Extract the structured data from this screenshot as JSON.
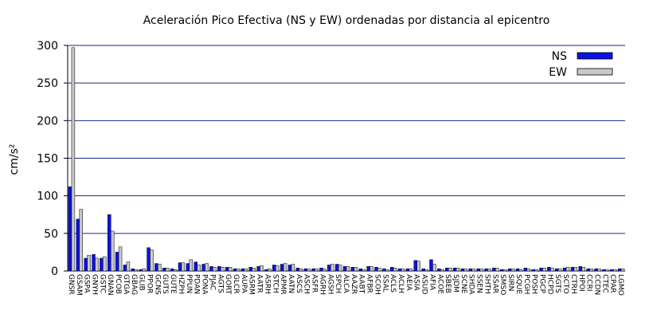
{
  "chart_data": {
    "type": "bar",
    "title": "Aceleración Pico Efectiva (NS y EW) ordenadas por distancia al epicentro",
    "ylabel": "cm/s²",
    "categories": [
      "GNSR",
      "GSAM",
      "GSPA",
      "GNYH",
      "GSTC",
      "GNAN",
      "PCOB",
      "GTGA",
      "GBAG",
      "GLIB",
      "PPOR",
      "GCNS",
      "GUTS",
      "GUTE",
      "HZPH",
      "PPUN",
      "PDAN",
      "PONA",
      "PJAC",
      "AGTS",
      "GORT",
      "GLCR",
      "AUPA",
      "ASRM",
      "AATR",
      "ASRH",
      "STCH",
      "APMR",
      "AATN",
      "ASCS",
      "ASCH",
      "ASFR",
      "AGRH",
      "AGSH",
      "SPCH",
      "ALCA",
      "AAZR",
      "AABT",
      "AFBR",
      "SCOH",
      "SSAL",
      "ACLS",
      "ACLH",
      "AEIA",
      "ASIA",
      "ASUD",
      "AFIA",
      "ACOE",
      "SBEB",
      "SJDM",
      "SCNE",
      "SHDA",
      "SSEN",
      "SHTH",
      "SSAR",
      "SMSO",
      "SIRN",
      "SQUE",
      "PCGH",
      "POSH",
      "PGCP",
      "HCPD",
      "SGTS",
      "SCTO",
      "CTRH",
      "HPOI",
      "CCRI",
      "CCDN",
      "CTEC",
      "CPAR",
      "LGMO"
    ],
    "series": [
      {
        "name": "NS",
        "color": "#0a14e6",
        "values": [
          112,
          69,
          17,
          22,
          17,
          75,
          25,
          8,
          3,
          2,
          31,
          10,
          4,
          3,
          11,
          10,
          12,
          9,
          6,
          6,
          5,
          3,
          3,
          5,
          6,
          2,
          8,
          9,
          8,
          4,
          3,
          3,
          4,
          8,
          9,
          6,
          5,
          3,
          6,
          5,
          3,
          5,
          3,
          3,
          14,
          3,
          15,
          3,
          4,
          4,
          3,
          3,
          3,
          3,
          4,
          2,
          3,
          3,
          4,
          2,
          4,
          5,
          3,
          4,
          5,
          6,
          3,
          3,
          2,
          2,
          3
        ]
      },
      {
        "name": "EW",
        "color": "#c8c8c8",
        "values": [
          297,
          82,
          21,
          17,
          19,
          53,
          32,
          12,
          2,
          3,
          28,
          9,
          4,
          2,
          11,
          15,
          8,
          10,
          5,
          5,
          5,
          3,
          3,
          4,
          7,
          3,
          7,
          10,
          9,
          3,
          3,
          3,
          3,
          9,
          8,
          6,
          5,
          2,
          6,
          4,
          2,
          4,
          3,
          3,
          13,
          2,
          9,
          2,
          4,
          4,
          3,
          3,
          3,
          3,
          4,
          2,
          3,
          2,
          3,
          2,
          4,
          4,
          3,
          5,
          5,
          5,
          3,
          3,
          2,
          2,
          3
        ]
      }
    ],
    "ylim": [
      0,
      300
    ],
    "yticks": [
      0,
      50,
      100,
      150,
      200,
      250,
      300
    ],
    "grid": true,
    "legend": "top-right"
  }
}
